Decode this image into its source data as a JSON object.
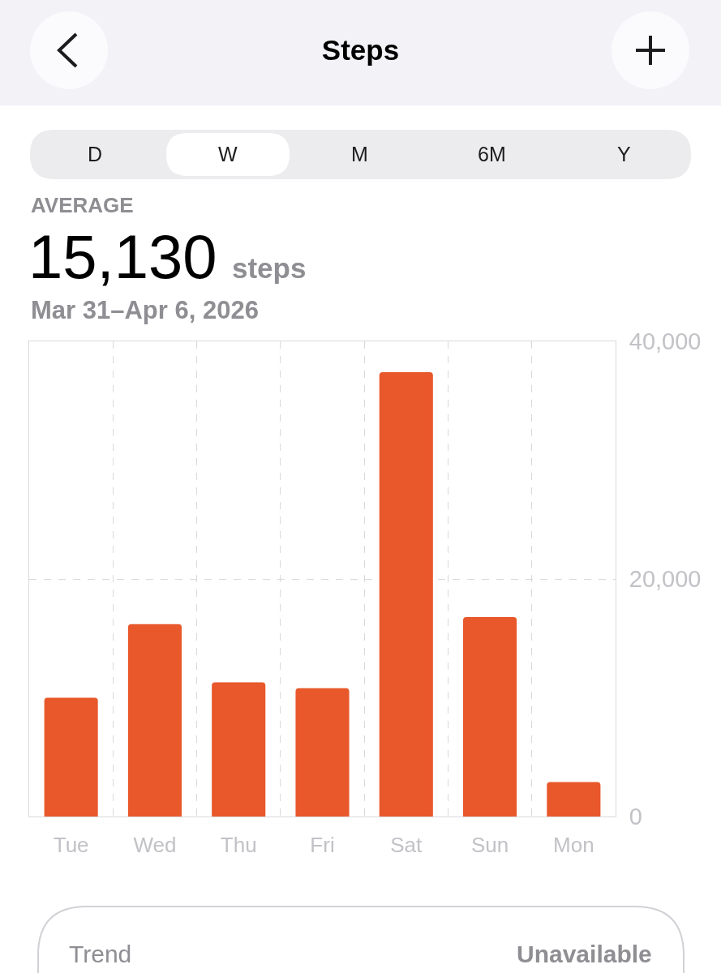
{
  "chart_data": {
    "type": "bar",
    "title": "Steps",
    "categories": [
      "Tue",
      "Wed",
      "Thu",
      "Fri",
      "Sat",
      "Sun",
      "Mon"
    ],
    "values": [
      10000,
      16200,
      11300,
      10800,
      37400,
      16800,
      2900
    ],
    "color": "#e8582b",
    "ylim": [
      0,
      40000
    ],
    "yticks": [
      0,
      {
        "value": 20000,
        "label": "20,000"
      },
      {
        "value": 40000,
        "label": "40,000"
      }
    ],
    "grid": true,
    "annotations": [
      "D",
      "W",
      "M",
      "6M",
      "Y",
      "AVERAGE",
      "15,130",
      "steps",
      "Mar 31–Apr 6, 2026",
      "Trend",
      "Unavailable"
    ]
  }
}
